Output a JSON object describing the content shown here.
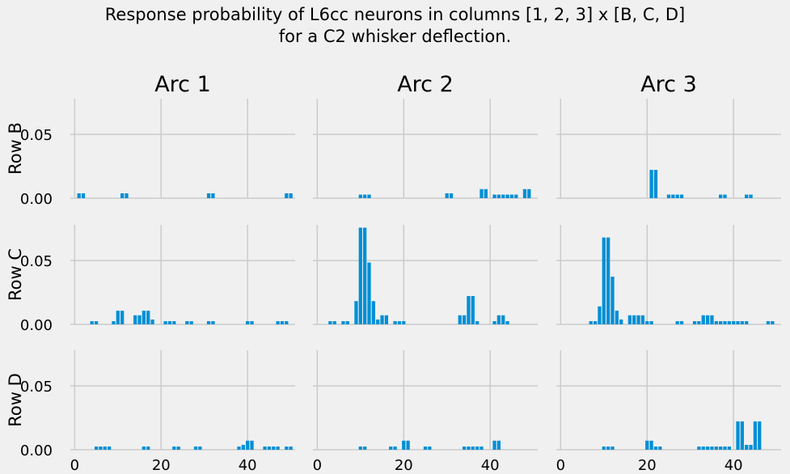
{
  "page": {
    "title_line1": "Response probability of L6cc neurons in columns [1, 2, 3] x [B, C, D]",
    "title_line2": "for a C2 whisker deflection."
  },
  "colors": {
    "bar": "#008fd5",
    "grid": "#cbcbcb",
    "background": "#f0f0f0"
  },
  "chart_data": {
    "type": "bar",
    "layout": "3x3 grid of subplots",
    "columns": [
      "Arc 1",
      "Arc 2",
      "Arc 3"
    ],
    "rows": [
      "Row B",
      "Row C",
      "Row D"
    ],
    "xlim": [
      -1,
      51
    ],
    "ylim": [
      0,
      0.078
    ],
    "xticks": [
      0,
      20,
      40
    ],
    "xtick_labels": [
      "0",
      "20",
      "40"
    ],
    "yticks": [
      0.0,
      0.05
    ],
    "ytick_labels": [
      "0.00",
      "0.05"
    ],
    "grid": true,
    "panels": [
      {
        "row": "Row B",
        "column": "Arc 1",
        "bars": [
          [
            1,
            0.0038
          ],
          [
            2,
            0.0038
          ],
          [
            11,
            0.0038
          ],
          [
            12,
            0.0038
          ],
          [
            31,
            0.0038
          ],
          [
            32,
            0.0038
          ],
          [
            49,
            0.0038
          ],
          [
            50,
            0.0038
          ]
        ]
      },
      {
        "row": "Row B",
        "column": "Arc 2",
        "bars": [
          [
            10,
            0.0028
          ],
          [
            11,
            0.0028
          ],
          [
            12,
            0.0028
          ],
          [
            30,
            0.0038
          ],
          [
            31,
            0.0038
          ],
          [
            38,
            0.0071
          ],
          [
            39,
            0.0071
          ],
          [
            41,
            0.0028
          ],
          [
            42,
            0.0028
          ],
          [
            43,
            0.0028
          ],
          [
            44,
            0.0028
          ],
          [
            45,
            0.0028
          ],
          [
            46,
            0.0028
          ],
          [
            48,
            0.0071
          ],
          [
            49,
            0.0071
          ]
        ]
      },
      {
        "row": "Row B",
        "column": "Arc 3",
        "bars": [
          [
            21,
            0.0222
          ],
          [
            22,
            0.0222
          ],
          [
            25,
            0.0028
          ],
          [
            26,
            0.0028
          ],
          [
            27,
            0.0028
          ],
          [
            28,
            0.0028
          ],
          [
            37,
            0.0028
          ],
          [
            38,
            0.0028
          ],
          [
            43,
            0.0028
          ],
          [
            44,
            0.0028
          ]
        ]
      },
      {
        "row": "Row C",
        "column": "Arc 1",
        "bars": [
          [
            4,
            0.0025
          ],
          [
            5,
            0.0025
          ],
          [
            9,
            0.0025
          ],
          [
            10,
            0.0107
          ],
          [
            11,
            0.0107
          ],
          [
            14,
            0.0071
          ],
          [
            15,
            0.0071
          ],
          [
            16,
            0.0107
          ],
          [
            17,
            0.0107
          ],
          [
            18,
            0.0038
          ],
          [
            21,
            0.0025
          ],
          [
            22,
            0.0025
          ],
          [
            23,
            0.0025
          ],
          [
            26,
            0.0025
          ],
          [
            27,
            0.0025
          ],
          [
            31,
            0.0025
          ],
          [
            32,
            0.0025
          ],
          [
            40,
            0.0025
          ],
          [
            41,
            0.0025
          ],
          [
            47,
            0.0025
          ],
          [
            48,
            0.0025
          ],
          [
            49,
            0.0025
          ]
        ]
      },
      {
        "row": "Row C",
        "column": "Arc 2",
        "bars": [
          [
            3,
            0.0025
          ],
          [
            4,
            0.0025
          ],
          [
            6,
            0.0025
          ],
          [
            7,
            0.0025
          ],
          [
            9,
            0.0182
          ],
          [
            10,
            0.0758
          ],
          [
            11,
            0.0758
          ],
          [
            12,
            0.0485
          ],
          [
            13,
            0.0182
          ],
          [
            14,
            0.0038
          ],
          [
            15,
            0.0071
          ],
          [
            16,
            0.0071
          ],
          [
            18,
            0.0025
          ],
          [
            19,
            0.0025
          ],
          [
            20,
            0.0025
          ],
          [
            33,
            0.0071
          ],
          [
            34,
            0.0071
          ],
          [
            35,
            0.0222
          ],
          [
            36,
            0.0222
          ],
          [
            37,
            0.0025
          ],
          [
            41,
            0.0025
          ],
          [
            42,
            0.0071
          ],
          [
            43,
            0.0071
          ],
          [
            44,
            0.0025
          ]
        ]
      },
      {
        "row": "Row C",
        "column": "Arc 3",
        "bars": [
          [
            7,
            0.0025
          ],
          [
            8,
            0.0025
          ],
          [
            9,
            0.0141
          ],
          [
            10,
            0.0681
          ],
          [
            11,
            0.0681
          ],
          [
            12,
            0.0374
          ],
          [
            13,
            0.0107
          ],
          [
            14,
            0.0038
          ],
          [
            16,
            0.0071
          ],
          [
            17,
            0.0071
          ],
          [
            18,
            0.0071
          ],
          [
            19,
            0.0071
          ],
          [
            20,
            0.0025
          ],
          [
            21,
            0.0025
          ],
          [
            27,
            0.0025
          ],
          [
            28,
            0.0025
          ],
          [
            31,
            0.0025
          ],
          [
            32,
            0.0025
          ],
          [
            33,
            0.0071
          ],
          [
            34,
            0.0071
          ],
          [
            35,
            0.0071
          ],
          [
            36,
            0.0025
          ],
          [
            37,
            0.0025
          ],
          [
            38,
            0.0025
          ],
          [
            39,
            0.0025
          ],
          [
            40,
            0.0025
          ],
          [
            41,
            0.0025
          ],
          [
            42,
            0.0025
          ],
          [
            43,
            0.0025
          ],
          [
            48,
            0.0025
          ],
          [
            49,
            0.0025
          ]
        ]
      },
      {
        "row": "Row D",
        "column": "Arc 1",
        "bars": [
          [
            5,
            0.0025
          ],
          [
            6,
            0.0025
          ],
          [
            7,
            0.0025
          ],
          [
            8,
            0.0025
          ],
          [
            16,
            0.0025
          ],
          [
            17,
            0.0025
          ],
          [
            23,
            0.0025
          ],
          [
            24,
            0.0025
          ],
          [
            28,
            0.0025
          ],
          [
            29,
            0.0025
          ],
          [
            38,
            0.0025
          ],
          [
            39,
            0.0038
          ],
          [
            40,
            0.0071
          ],
          [
            41,
            0.0071
          ],
          [
            44,
            0.0025
          ],
          [
            45,
            0.0025
          ],
          [
            46,
            0.0025
          ],
          [
            47,
            0.0025
          ],
          [
            49,
            0.0025
          ],
          [
            50,
            0.0025
          ]
        ]
      },
      {
        "row": "Row D",
        "column": "Arc 2",
        "bars": [
          [
            10,
            0.0025
          ],
          [
            11,
            0.0025
          ],
          [
            17,
            0.0025
          ],
          [
            18,
            0.0025
          ],
          [
            20,
            0.0071
          ],
          [
            21,
            0.0071
          ],
          [
            25,
            0.0025
          ],
          [
            26,
            0.0025
          ],
          [
            34,
            0.0025
          ],
          [
            35,
            0.0025
          ],
          [
            36,
            0.0025
          ],
          [
            37,
            0.0025
          ],
          [
            38,
            0.0025
          ],
          [
            41,
            0.0071
          ],
          [
            42,
            0.0071
          ]
        ]
      },
      {
        "row": "Row D",
        "column": "Arc 3",
        "bars": [
          [
            10,
            0.0025
          ],
          [
            11,
            0.0025
          ],
          [
            12,
            0.0025
          ],
          [
            20,
            0.0071
          ],
          [
            21,
            0.0071
          ],
          [
            22,
            0.0025
          ],
          [
            23,
            0.0025
          ],
          [
            32,
            0.0025
          ],
          [
            33,
            0.0025
          ],
          [
            34,
            0.0025
          ],
          [
            35,
            0.0025
          ],
          [
            36,
            0.0025
          ],
          [
            37,
            0.0025
          ],
          [
            38,
            0.0025
          ],
          [
            39,
            0.0025
          ],
          [
            41,
            0.0222
          ],
          [
            42,
            0.0222
          ],
          [
            43,
            0.0038
          ],
          [
            44,
            0.0038
          ],
          [
            45,
            0.0222
          ],
          [
            46,
            0.0222
          ]
        ]
      }
    ]
  }
}
